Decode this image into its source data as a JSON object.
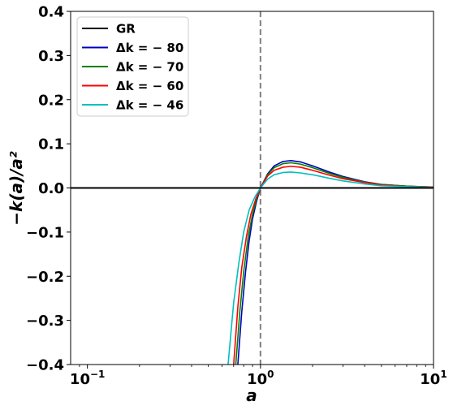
{
  "chart_data": {
    "type": "line",
    "title": "",
    "xlabel": "a",
    "ylabel": "−k(a)/a²",
    "xscale": "log",
    "xlim": [
      0.08,
      10
    ],
    "ylim": [
      -0.4,
      0.4
    ],
    "grid": false,
    "legend_position": "upper-left",
    "x_ticks": [
      {
        "value": 0.1,
        "base": "10",
        "exp": "−1"
      },
      {
        "value": 1,
        "base": "10",
        "exp": "0"
      },
      {
        "value": 10,
        "base": "10",
        "exp": "1"
      }
    ],
    "y_ticks": [
      {
        "value": 0.4,
        "label": "0.4"
      },
      {
        "value": 0.3,
        "label": "0.3"
      },
      {
        "value": 0.2,
        "label": "0.2"
      },
      {
        "value": 0.1,
        "label": "0.1"
      },
      {
        "value": 0.0,
        "label": "0.0"
      },
      {
        "value": -0.1,
        "label": "−0.1"
      },
      {
        "value": -0.2,
        "label": "−0.2"
      },
      {
        "value": -0.3,
        "label": "−0.3"
      },
      {
        "value": -0.4,
        "label": "−0.4"
      }
    ],
    "vline": {
      "x": 1.0,
      "style": "dashed",
      "color": "#808080"
    },
    "series": [
      {
        "name": "GR",
        "color": "#000000",
        "x": [
          0.08,
          10
        ],
        "y": [
          0.0,
          0.0
        ]
      },
      {
        "name": "Δk = − 80",
        "color": "#0000bf",
        "x": [
          0.74,
          0.78,
          0.82,
          0.86,
          0.9,
          0.95,
          1.0,
          1.1,
          1.2,
          1.35,
          1.5,
          1.7,
          2.0,
          2.5,
          3.0,
          4.0,
          5.0,
          7.0,
          10.0
        ],
        "y": [
          -0.4,
          -0.28,
          -0.19,
          -0.12,
          -0.07,
          -0.03,
          0.0,
          0.032,
          0.05,
          0.06,
          0.062,
          0.059,
          0.05,
          0.036,
          0.026,
          0.014,
          0.008,
          0.004,
          0.002
        ]
      },
      {
        "name": "Δk = − 70",
        "color": "#008000",
        "x": [
          0.72,
          0.76,
          0.8,
          0.85,
          0.9,
          0.95,
          1.0,
          1.1,
          1.2,
          1.35,
          1.5,
          1.7,
          2.0,
          2.5,
          3.0,
          4.0,
          5.0,
          7.0,
          10.0
        ],
        "y": [
          -0.4,
          -0.28,
          -0.19,
          -0.11,
          -0.06,
          -0.025,
          0.0,
          0.03,
          0.046,
          0.055,
          0.057,
          0.054,
          0.046,
          0.033,
          0.024,
          0.013,
          0.008,
          0.004,
          0.002
        ]
      },
      {
        "name": "Δk = − 60",
        "color": "#ff0000",
        "x": [
          0.7,
          0.74,
          0.78,
          0.83,
          0.88,
          0.94,
          1.0,
          1.1,
          1.2,
          1.35,
          1.5,
          1.7,
          2.0,
          2.5,
          3.0,
          4.0,
          5.0,
          7.0,
          10.0
        ],
        "y": [
          -0.4,
          -0.27,
          -0.18,
          -0.11,
          -0.06,
          -0.025,
          0.0,
          0.027,
          0.04,
          0.047,
          0.049,
          0.047,
          0.04,
          0.029,
          0.021,
          0.012,
          0.007,
          0.003,
          0.002
        ]
      },
      {
        "name": "Δk = − 46",
        "color": "#00bfbf",
        "x": [
          0.65,
          0.7,
          0.75,
          0.8,
          0.86,
          0.93,
          1.0,
          1.1,
          1.2,
          1.35,
          1.5,
          1.7,
          2.0,
          2.5,
          3.0,
          4.0,
          5.0,
          7.0,
          10.0
        ],
        "y": [
          -0.4,
          -0.26,
          -0.17,
          -0.1,
          -0.05,
          -0.02,
          0.0,
          0.02,
          0.03,
          0.035,
          0.036,
          0.034,
          0.03,
          0.022,
          0.016,
          0.009,
          0.005,
          0.003,
          0.001
        ]
      }
    ]
  }
}
